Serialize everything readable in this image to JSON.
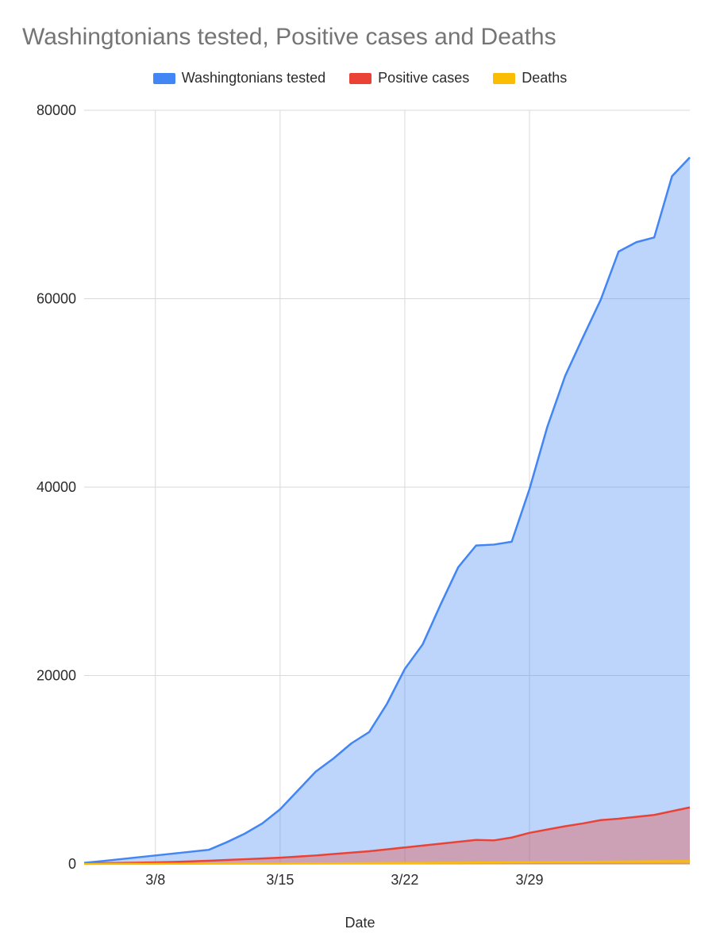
{
  "chart": {
    "type": "area",
    "title": "Washingtonians tested, Positive cases and Deaths",
    "x_axis_title": "Date",
    "title_color": "#757575",
    "title_fontsize": 30,
    "background_color": "#ffffff",
    "plot_background": "#ffffff",
    "grid_color": "#d9d9d9",
    "grid_width": 1,
    "tick_label_color": "#2b2b2b",
    "tick_fontsize": 18,
    "axis_title_fontsize": 18,
    "ylim": [
      0,
      80000
    ],
    "ytick_step": 20000,
    "y_ticks": [
      0,
      20000,
      40000,
      60000,
      80000
    ],
    "x_ticks": [
      {
        "i": 4,
        "label": "3/8"
      },
      {
        "i": 11,
        "label": "3/15"
      },
      {
        "i": 18,
        "label": "3/22"
      },
      {
        "i": 25,
        "label": "3/29"
      }
    ],
    "line_width": 2.5,
    "fill_opacity": 0.35,
    "legend": {
      "position": "top-center",
      "items": [
        {
          "label": "Washingtonians tested",
          "color": "#4285f4"
        },
        {
          "label": "Positive cases",
          "color": "#ea4335"
        },
        {
          "label": "Deaths",
          "color": "#fbbc04"
        }
      ]
    },
    "series": [
      {
        "name": "Washingtonians tested",
        "stroke": "#4285f4",
        "fill": "#4285f4",
        "values": [
          120,
          300,
          500,
          700,
          900,
          1100,
          1300,
          1500,
          2300,
          3200,
          4300,
          5800,
          7800,
          9800,
          11200,
          12800,
          14000,
          17000,
          20700,
          23300,
          27500,
          31500,
          33800,
          33900,
          34200,
          39800,
          46400,
          51800,
          55900,
          59900,
          65000,
          66000,
          66500,
          73000,
          75000
        ]
      },
      {
        "name": "Positive cases",
        "stroke": "#ea4335",
        "fill": "#ea4335",
        "values": [
          30,
          80,
          110,
          140,
          170,
          210,
          270,
          340,
          420,
          500,
          580,
          660,
          780,
          900,
          1050,
          1200,
          1350,
          1550,
          1750,
          1950,
          2150,
          2350,
          2550,
          2500,
          2800,
          3300,
          3650,
          4000,
          4300,
          4650,
          4800,
          5000,
          5200,
          5600,
          6000
        ]
      },
      {
        "name": "Deaths",
        "stroke": "#fbbc04",
        "fill": "#fbbc04",
        "values": [
          1,
          6,
          10,
          11,
          15,
          18,
          22,
          27,
          31,
          37,
          40,
          42,
          48,
          55,
          66,
          74,
          83,
          94,
          104,
          110,
          123,
          130,
          147,
          160,
          175,
          189,
          200,
          210,
          225,
          238,
          250,
          262,
          275,
          290,
          310
        ]
      }
    ]
  }
}
